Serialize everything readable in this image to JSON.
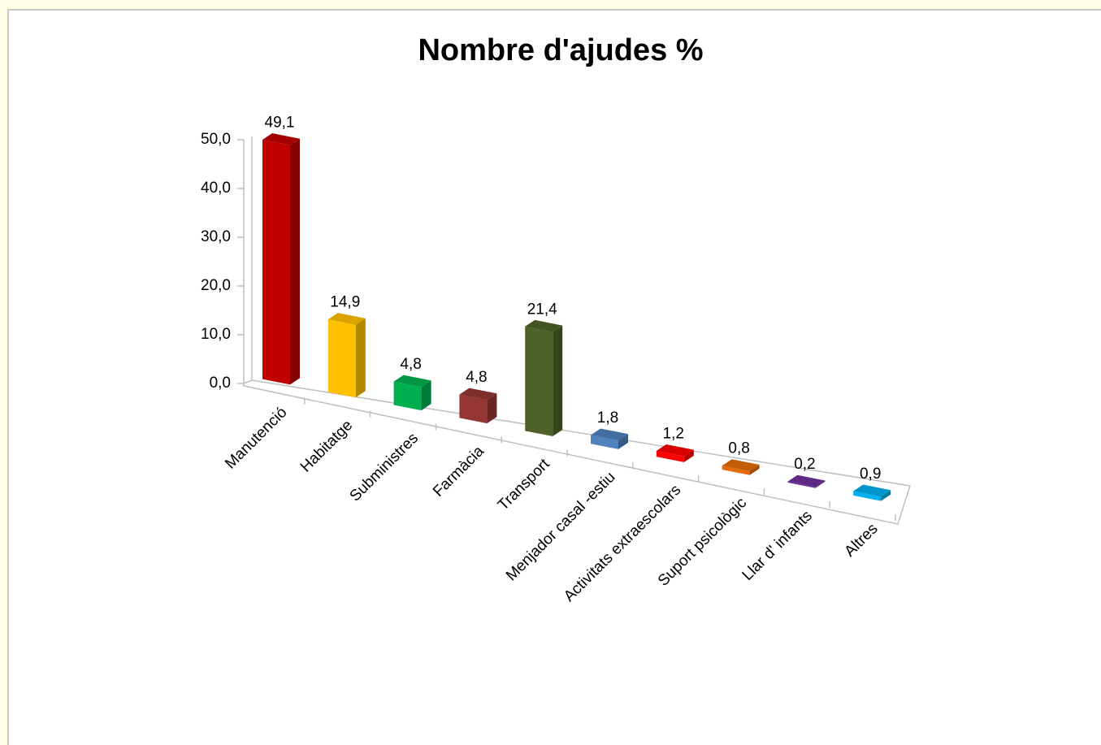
{
  "chart_data": {
    "type": "bar3d",
    "title": "Nombre d'ajudes  %",
    "categories": [
      "Manutenció",
      "Habitatge",
      "Subministres",
      "Farmàcia",
      "Transport",
      "Menjador casal -estiu",
      "Activitats extraescolars",
      "Suport psicològic",
      "Llar d' infants",
      "Altres"
    ],
    "values": [
      49.1,
      14.9,
      4.8,
      4.8,
      21.4,
      1.8,
      1.2,
      0.8,
      0.2,
      0.9
    ],
    "value_labels": [
      "49,1",
      "14,9",
      "4,8",
      "4,8",
      "21,4",
      "1,8",
      "1,2",
      "0,8",
      "0,2",
      "0,9"
    ],
    "colors": [
      "#c00000",
      "#ffc000",
      "#00b050",
      "#943634",
      "#4f6228",
      "#4f81bd",
      "#ff0000",
      "#e36c09",
      "#7030a0",
      "#00b0f0"
    ],
    "ylim": [
      0,
      50
    ],
    "yticks": [
      {
        "value": 0,
        "label": "0,0"
      },
      {
        "value": 10,
        "label": "10,0"
      },
      {
        "value": 20,
        "label": "20,0"
      },
      {
        "value": 30,
        "label": "30,0"
      },
      {
        "value": 40,
        "label": "40,0"
      },
      {
        "value": 50,
        "label": "50,0"
      }
    ]
  }
}
